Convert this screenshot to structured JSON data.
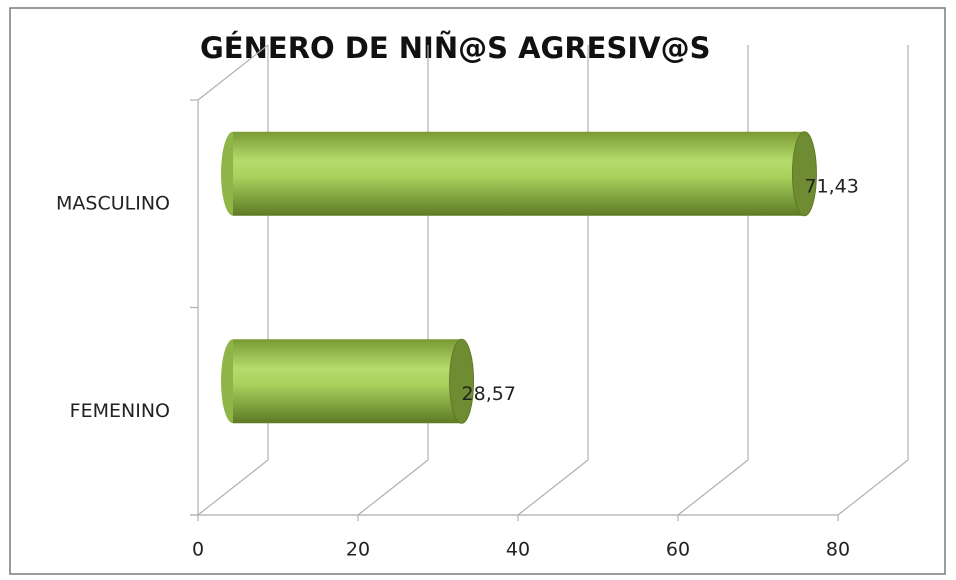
{
  "chart_data": {
    "type": "bar3d_horizontal",
    "title": "GÉNERO DE NIÑ@S AGRESIV@S",
    "categories": [
      "MASCULINO",
      "FEMENINO"
    ],
    "values": [
      71.43,
      28.57
    ],
    "value_labels": [
      "71,43",
      "28,57"
    ],
    "color": "#9bc44a",
    "xlim": [
      0,
      80
    ],
    "xticks": [
      0,
      20,
      40,
      60,
      80
    ],
    "grid": true
  }
}
